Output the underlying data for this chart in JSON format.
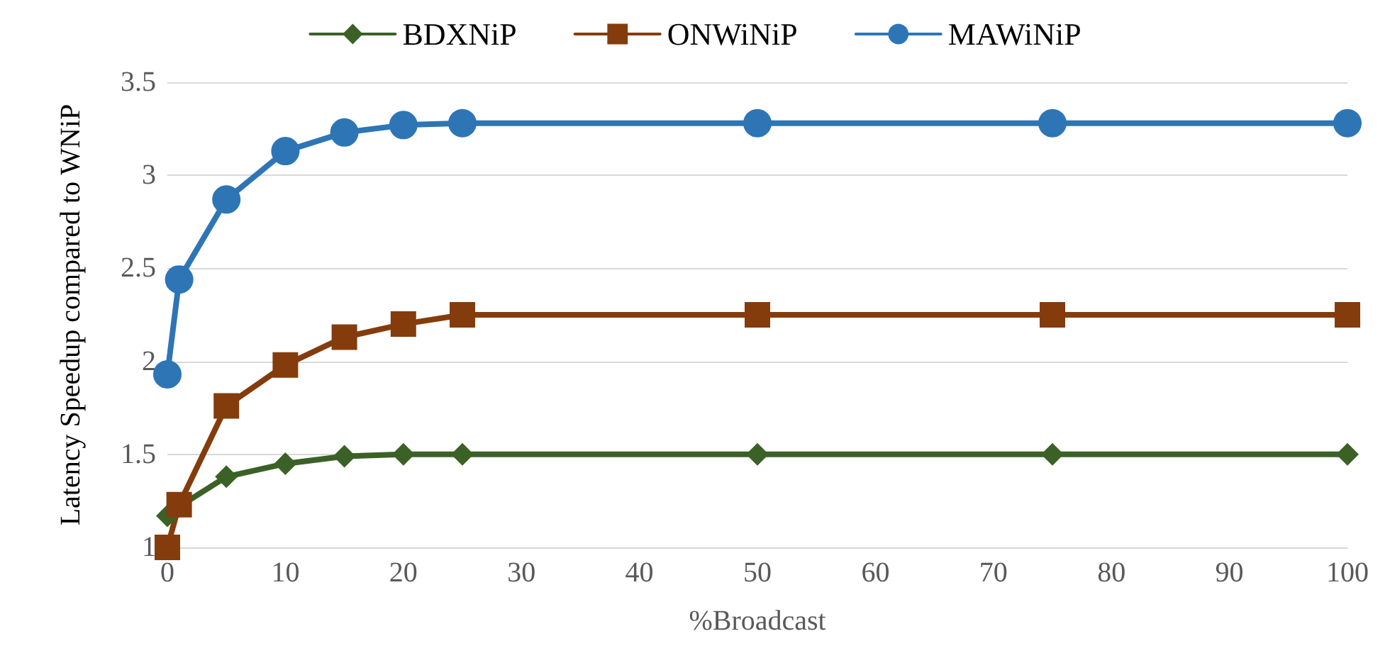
{
  "chart_data": {
    "type": "line",
    "xlabel": "%Broadcast",
    "ylabel": "Latency Speedup compared to WNiP",
    "x": [
      0,
      1,
      5,
      10,
      15,
      20,
      25,
      50,
      75,
      100
    ],
    "series": [
      {
        "name": "BDXNiP",
        "color": "#3b6127",
        "marker": "diamond",
        "values": [
          1.17,
          1.22,
          1.38,
          1.45,
          1.49,
          1.5,
          1.5,
          1.5,
          1.5,
          1.5
        ]
      },
      {
        "name": "ONWiNiP",
        "color": "#843c0c",
        "marker": "square",
        "values": [
          1.0,
          1.23,
          1.76,
          1.98,
          2.13,
          2.2,
          2.25,
          2.25,
          2.25,
          2.25
        ]
      },
      {
        "name": "MAWiNiP",
        "color": "#2e75b6",
        "marker": "circle",
        "values": [
          1.93,
          2.44,
          2.87,
          3.13,
          3.23,
          3.27,
          3.28,
          3.28,
          3.28,
          3.28
        ]
      }
    ],
    "xlim": [
      0,
      100
    ],
    "xticks": [
      0,
      10,
      20,
      30,
      40,
      50,
      60,
      70,
      80,
      90,
      100
    ],
    "ylim": [
      1,
      3.5
    ],
    "yticks": [
      1,
      1.5,
      2,
      2.5,
      3,
      3.5
    ],
    "grid": "y",
    "legend": "top",
    "line_style": "solid"
  }
}
